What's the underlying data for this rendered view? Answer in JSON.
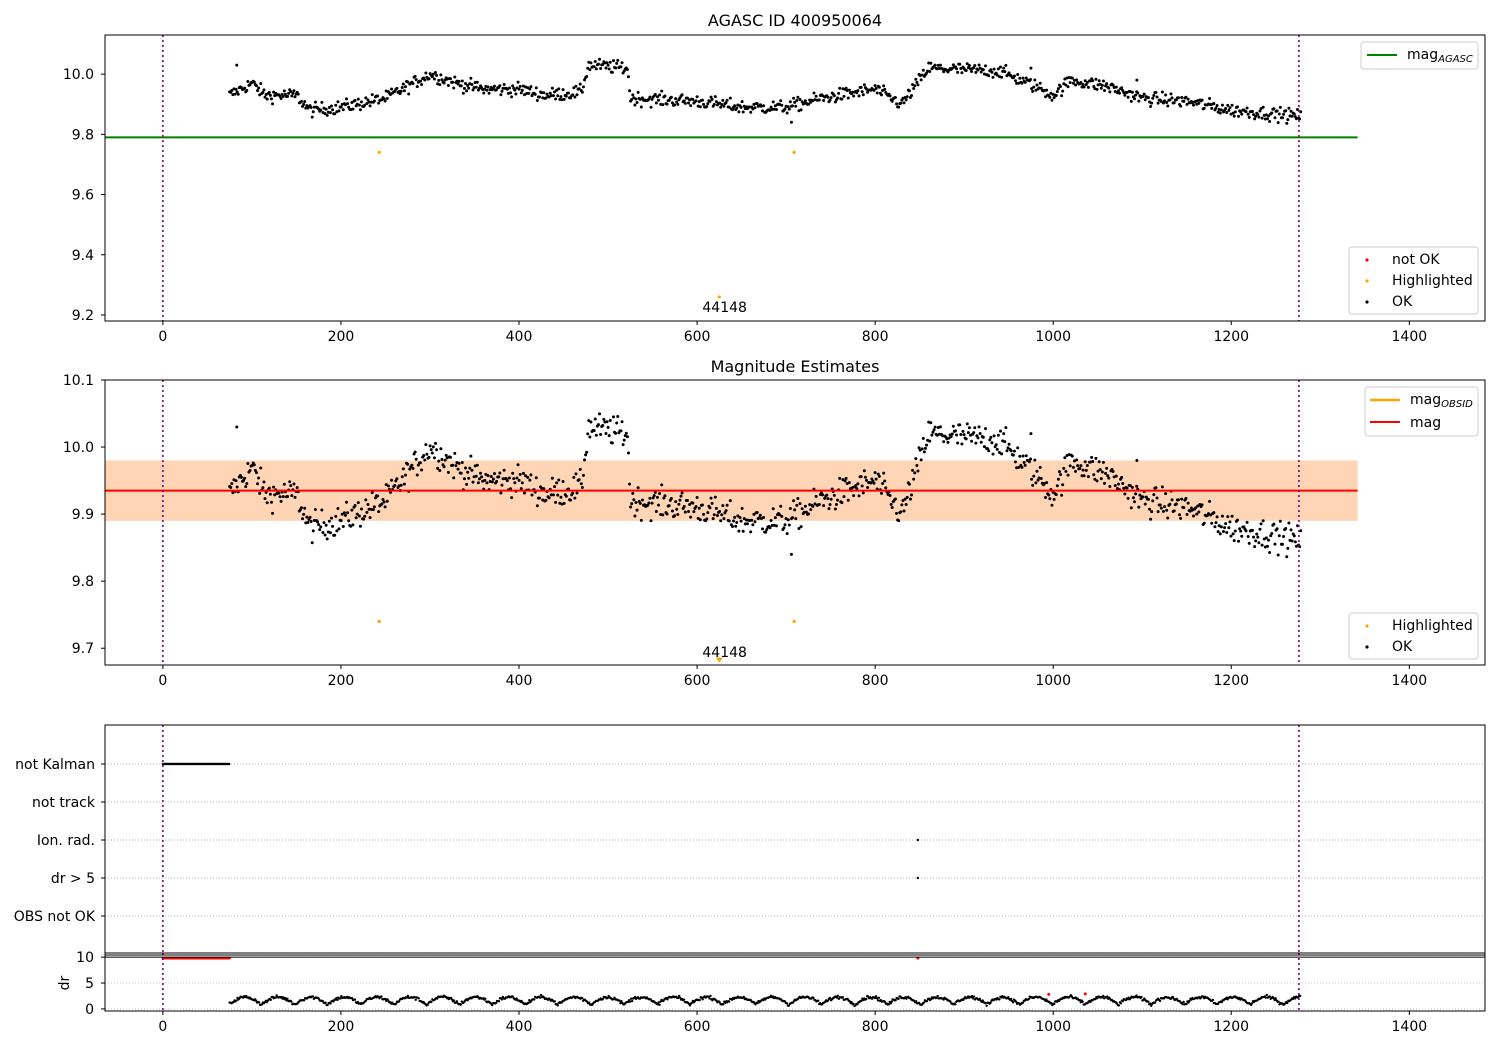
{
  "figure": {
    "title": "AGASC ID 400950064"
  },
  "panels": {
    "agasc": {
      "legend_line": {
        "label": "mag",
        "subscript": "AGASC",
        "color": "#008000"
      },
      "legend_points": [
        {
          "label": "not OK",
          "color": "#ff0000"
        },
        {
          "label": "Highlighted",
          "color": "#ffa500"
        },
        {
          "label": "OK",
          "color": "#000000"
        }
      ]
    },
    "estimates": {
      "title": "Magnitude Estimates",
      "legend_lines": [
        {
          "label": "mag",
          "subscript": "OBSID",
          "color": "#ffa500"
        },
        {
          "label": "mag",
          "subscript": "",
          "color": "#ff0000"
        }
      ],
      "legend_points": [
        {
          "label": "Highlighted",
          "color": "#ffa500"
        },
        {
          "label": "OK",
          "color": "#000000"
        }
      ]
    },
    "flags": {
      "categories": [
        "not Kalman",
        "not track",
        "Ion. rad.",
        "dr > 5",
        "OBS not OK"
      ]
    },
    "dr": {
      "ylabel": "dr"
    }
  },
  "chart_data": [
    {
      "type": "scatter",
      "title": "AGASC ID 400950064",
      "xlim": [
        -65,
        1485
      ],
      "ylim": [
        9.18,
        10.13
      ],
      "xticks": [
        0,
        200,
        400,
        600,
        800,
        1000,
        1200,
        1400
      ],
      "yticks": [
        9.2,
        9.4,
        9.6,
        9.8,
        10.0
      ],
      "ytick_labels": [
        "9.2",
        "9.4",
        "9.6",
        "9.8",
        "10.0"
      ],
      "vlines": [
        0,
        1276
      ],
      "hline": {
        "name": "mag_AGASC",
        "y": 9.79,
        "x": [
          -65,
          1342
        ],
        "color": "#008000"
      },
      "ok_series": {
        "x_start": 75,
        "x_end": 1278,
        "n": 1000,
        "segments": [
          [
            75,
            9.93
          ],
          [
            100,
            9.97
          ],
          [
            115,
            9.93
          ],
          [
            150,
            9.93
          ],
          [
            165,
            9.88
          ],
          [
            200,
            9.89
          ],
          [
            250,
            9.92
          ],
          [
            300,
            10.0
          ],
          [
            330,
            9.97
          ],
          [
            360,
            9.95
          ],
          [
            400,
            9.95
          ],
          [
            430,
            9.93
          ],
          [
            470,
            9.94
          ],
          [
            478,
            10.03
          ],
          [
            522,
            10.02
          ],
          [
            525,
            9.92
          ],
          [
            600,
            9.91
          ],
          [
            650,
            9.89
          ],
          [
            700,
            9.89
          ],
          [
            740,
            9.92
          ],
          [
            800,
            9.95
          ],
          [
            830,
            9.9
          ],
          [
            860,
            10.02
          ],
          [
            940,
            10.01
          ],
          [
            980,
            9.96
          ],
          [
            1000,
            9.93
          ],
          [
            1020,
            9.98
          ],
          [
            1060,
            9.96
          ],
          [
            1100,
            9.92
          ],
          [
            1150,
            9.91
          ],
          [
            1200,
            9.88
          ],
          [
            1278,
            9.86
          ]
        ],
        "extra_points": [
          [
            83,
            10.03
          ],
          [
            706,
            9.84
          ],
          [
            1094,
            9.98
          ],
          [
            975,
            10.02
          ]
        ]
      },
      "highlighted": [
        [
          243,
          9.74
        ],
        [
          709,
          9.74
        ],
        [
          625,
          9.26
        ]
      ],
      "annotation": {
        "text": "44148",
        "x": 640,
        "y": 9.2
      }
    },
    {
      "type": "scatter",
      "title": "Magnitude Estimates",
      "xlim": [
        -65,
        1485
      ],
      "ylim": [
        9.675,
        10.1
      ],
      "xticks": [
        0,
        200,
        400,
        600,
        800,
        1000,
        1200,
        1400
      ],
      "yticks": [
        9.7,
        9.8,
        9.9,
        10.0,
        10.1
      ],
      "ytick_labels": [
        "9.7",
        "9.8",
        "9.9",
        "10.0",
        "10.1"
      ],
      "vlines": [
        0,
        1276
      ],
      "mag_line": {
        "name": "mag",
        "y": 9.935,
        "x": [
          -65,
          1342
        ],
        "color": "#ff0000"
      },
      "mag_band": {
        "y": [
          9.89,
          9.98
        ],
        "x": [
          -65,
          1342
        ],
        "color": "#ffc0cb"
      },
      "mag_obsid_band": {
        "y": [
          9.89,
          9.98
        ],
        "x": [
          -65,
          1342
        ],
        "color": "#ffa500"
      },
      "ok_series": "same as AGASC panel",
      "highlighted": [
        [
          243,
          9.74
        ],
        [
          709,
          9.74
        ]
      ],
      "marker": {
        "x": 625,
        "y": 9.68,
        "color": "#ffa500"
      },
      "annotation": {
        "text": "44148",
        "x": 640,
        "y": 9.68
      }
    },
    {
      "type": "scatter",
      "title": "",
      "xlim": [
        -65,
        1485
      ],
      "categories": [
        "not Kalman",
        "not track",
        "Ion. rad.",
        "dr > 5",
        "OBS not OK"
      ],
      "points": [
        {
          "category": "not Kalman",
          "x_range": [
            0,
            75
          ]
        },
        {
          "category": "Ion. rad.",
          "x": [
            848
          ]
        },
        {
          "category": "dr > 5",
          "x": [
            848
          ]
        }
      ],
      "vlines": [
        0,
        1276
      ]
    },
    {
      "type": "scatter",
      "title": "",
      "ylabel": "dr",
      "xlim": [
        -65,
        1485
      ],
      "ylim": [
        -0.4,
        10.8
      ],
      "xticks": [
        0,
        200,
        400,
        600,
        800,
        1000,
        1200,
        1400
      ],
      "yticks": [
        0,
        5,
        10
      ],
      "ytick_labels": [
        "0",
        "5",
        "10"
      ],
      "hline": {
        "y": 10,
        "color": "#000000"
      },
      "high_dr": {
        "x_range": [
          0,
          75
        ],
        "y": 9.8,
        "extra_x": [
          848
        ],
        "color": "#ff0000"
      },
      "dr_series": {
        "x_start": 75,
        "x_end": 1278,
        "min": 0.2,
        "max": 2.8
      },
      "red_points": [
        [
          995,
          2.8
        ],
        [
          1036,
          2.9
        ]
      ],
      "vlines": [
        0,
        1276
      ]
    }
  ]
}
